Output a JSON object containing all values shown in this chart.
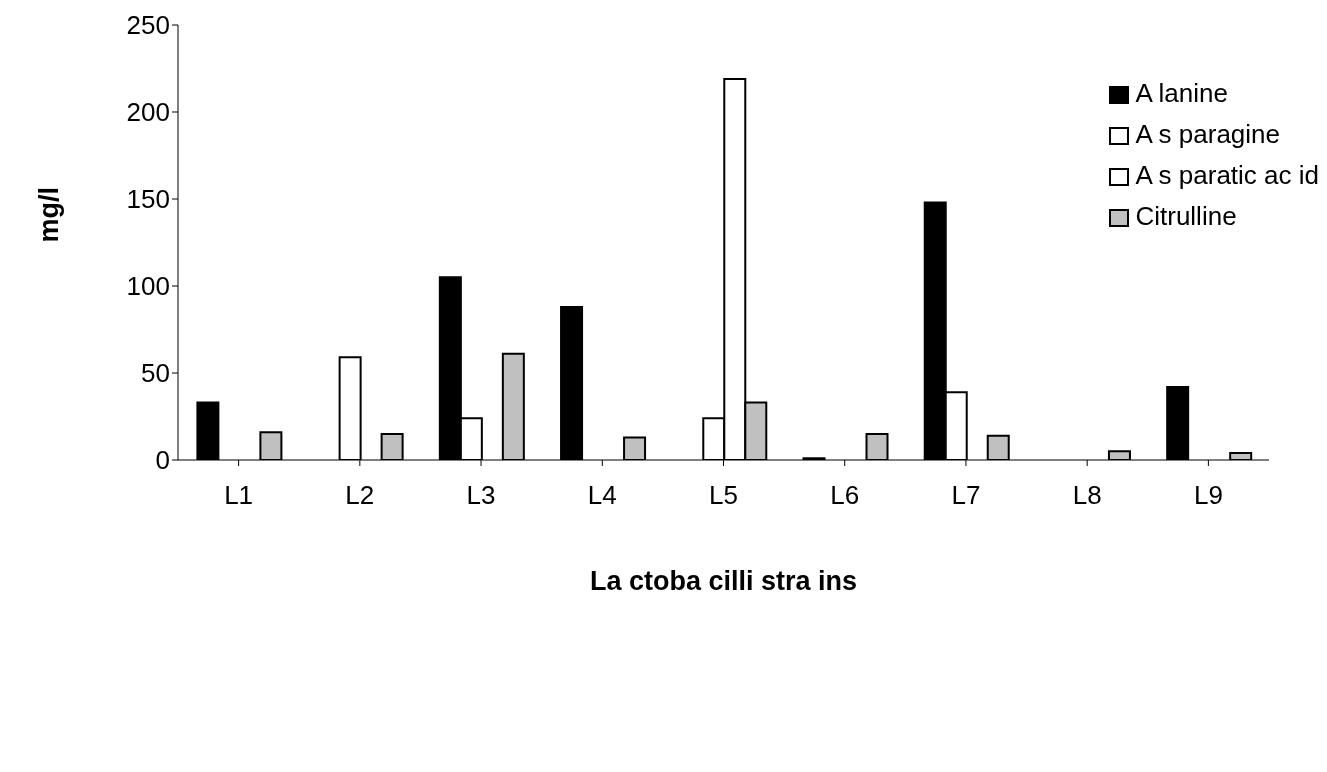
{
  "chart_data": {
    "type": "bar",
    "xlabel": "La ctoba cilli stra ins",
    "ylabel": "mg/l",
    "categories": [
      "L1",
      "L2",
      "L3",
      "L4",
      "L5",
      "L6",
      "L7",
      "L8",
      "L9"
    ],
    "series": [
      {
        "name": "A lanine",
        "color": "#000000",
        "values": [
          33,
          0,
          105,
          88,
          0,
          1,
          148,
          0,
          42
        ]
      },
      {
        "name": "A s paragine",
        "color": "#ffffff",
        "values": [
          0,
          59,
          24,
          0,
          24,
          0,
          39,
          0,
          0
        ]
      },
      {
        "name": "A s paratic ac id",
        "color": "#ffffff",
        "values": [
          0,
          0,
          0,
          0,
          219,
          0,
          0,
          0,
          0
        ]
      },
      {
        "name": "Citrulline",
        "color": "#c0c0c0",
        "values": [
          16,
          15,
          61,
          13,
          33,
          15,
          14,
          5,
          4
        ]
      }
    ],
    "ylim": [
      0,
      250
    ],
    "yticks": [
      0,
      50,
      100,
      150,
      200,
      250
    ],
    "grid": false,
    "legend": "top right"
  }
}
